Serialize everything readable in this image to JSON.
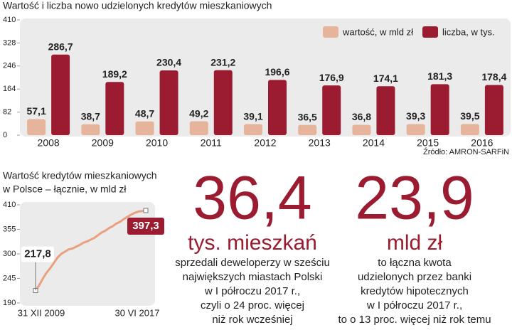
{
  "chart_data": [
    {
      "type": "bar",
      "title": "Wartość i liczba nowo udzielonych kredytów mieszkaniowych",
      "categories": [
        "2008",
        "2009",
        "2010",
        "2011",
        "2012",
        "2013",
        "2014",
        "2015",
        "2016"
      ],
      "series": [
        {
          "name": "wartość, w mld zł",
          "color": "#e6b39b",
          "values": [
            57.1,
            38.7,
            48.7,
            49.2,
            39.1,
            36.5,
            36.8,
            39.3,
            39.5
          ],
          "value_labels": [
            "57,1",
            "38,7",
            "48,7",
            "49,2",
            "39,1",
            "36,5",
            "36,8",
            "39,3",
            "39,5"
          ]
        },
        {
          "name": "liczba, w tys.",
          "color": "#9b1b30",
          "values": [
            286.7,
            189.2,
            230.4,
            231.2,
            196.6,
            176.9,
            174.1,
            181.3,
            178.4
          ],
          "value_labels": [
            "286,7",
            "189,2",
            "230,4",
            "231,2",
            "196,6",
            "176,9",
            "174,1",
            "181,3",
            "178,4"
          ]
        }
      ],
      "ylim": [
        0,
        410
      ],
      "yticks": [
        0,
        82,
        164,
        246,
        328,
        410
      ],
      "legend": "upper right",
      "source": "Źródło: AMRON-SARFiN"
    },
    {
      "type": "line",
      "title": [
        "Wartość kredytów mieszkaniowych",
        "w Polsce – łącznie, w mld zł"
      ],
      "categories": [
        "31 XII 2009",
        null,
        null,
        null,
        null,
        null,
        null,
        null,
        null,
        null,
        null,
        null,
        null,
        null,
        null,
        null,
        null,
        null,
        null,
        null,
        null,
        null,
        null,
        null,
        null,
        null,
        null,
        null,
        null,
        null,
        "30 VI 2017"
      ],
      "series": [
        {
          "color": "#e8a07e",
          "values": [
            217.8,
            230,
            245,
            258,
            268,
            280,
            292,
            300,
            305,
            310,
            312,
            316,
            320,
            325,
            328,
            332,
            336,
            342,
            348,
            352,
            358,
            362,
            368,
            372,
            378,
            383,
            388,
            392,
            395,
            396,
            397.3
          ],
          "value_labels": [
            "217,8",
            null,
            null,
            null,
            null,
            null,
            null,
            null,
            null,
            null,
            null,
            null,
            null,
            null,
            null,
            null,
            null,
            null,
            null,
            null,
            null,
            null,
            null,
            null,
            null,
            null,
            null,
            null,
            null,
            null,
            "397,3"
          ]
        }
      ],
      "ylim": [
        190,
        410
      ],
      "yticks": [
        190,
        245,
        300,
        355,
        410
      ]
    }
  ],
  "highlights": [
    {
      "value": "36,4",
      "unit": "tys. mieszkań",
      "text": [
        "sprzedali deweloperzy w sześciu",
        "największych miastach Polski",
        "w I półroczu 2017 r.,",
        "czyli o 24 proc. więcej",
        "niż rok wcześniej"
      ]
    },
    {
      "value": "23,9",
      "unit": "mld zł",
      "text": [
        "to łączna kwota",
        "udzielonych przez banki",
        "kredytów hipotecznych",
        "w I półroczu 2017 r.,",
        "to o 13 proc. więcej niż rok temu"
      ]
    }
  ]
}
